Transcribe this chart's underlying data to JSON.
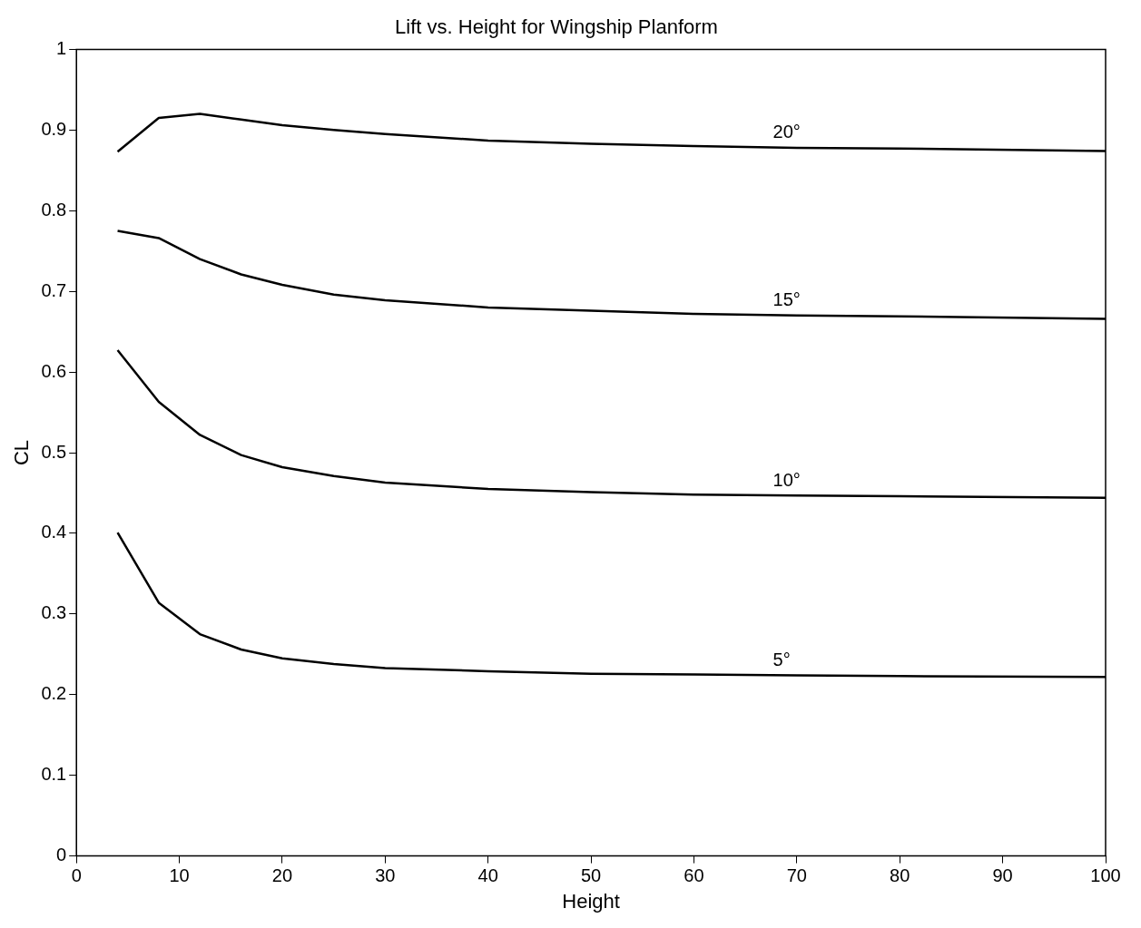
{
  "chart_data": {
    "type": "line",
    "title": "Lift vs. Height for Wingship Planform",
    "xlabel": "Height",
    "ylabel": "CL",
    "x": [
      4,
      8,
      12,
      16,
      20,
      25,
      30,
      40,
      50,
      60,
      70,
      80,
      100
    ],
    "series": [
      {
        "name": "20°",
        "color": "#000000",
        "values": [
          0.873,
          0.915,
          0.92,
          0.913,
          0.906,
          0.9,
          0.895,
          0.887,
          0.883,
          0.88,
          0.878,
          0.877,
          0.874
        ]
      },
      {
        "name": "15°",
        "color": "#000000",
        "values": [
          0.775,
          0.766,
          0.74,
          0.721,
          0.708,
          0.696,
          0.689,
          0.68,
          0.676,
          0.672,
          0.67,
          0.669,
          0.666
        ]
      },
      {
        "name": "10°",
        "color": "#000000",
        "values": [
          0.627,
          0.563,
          0.522,
          0.497,
          0.482,
          0.471,
          0.463,
          0.455,
          0.451,
          0.448,
          0.447,
          0.446,
          0.444
        ]
      },
      {
        "name": "5°",
        "color": "#000000",
        "values": [
          0.401,
          0.314,
          0.275,
          0.256,
          0.245,
          0.238,
          0.233,
          0.229,
          0.226,
          0.225,
          0.224,
          0.223,
          0.222
        ]
      }
    ],
    "xlim": [
      0,
      100
    ],
    "xticks": [
      0,
      10,
      20,
      30,
      40,
      50,
      60,
      70,
      80,
      90,
      100
    ],
    "ylim": [
      0,
      1
    ],
    "yticks": [
      0,
      0.1,
      0.2,
      0.3,
      0.4,
      0.5,
      0.6,
      0.7,
      0.8,
      0.9,
      1
    ],
    "grid": false,
    "legend": false,
    "marker": "none",
    "line_style": "solid"
  }
}
